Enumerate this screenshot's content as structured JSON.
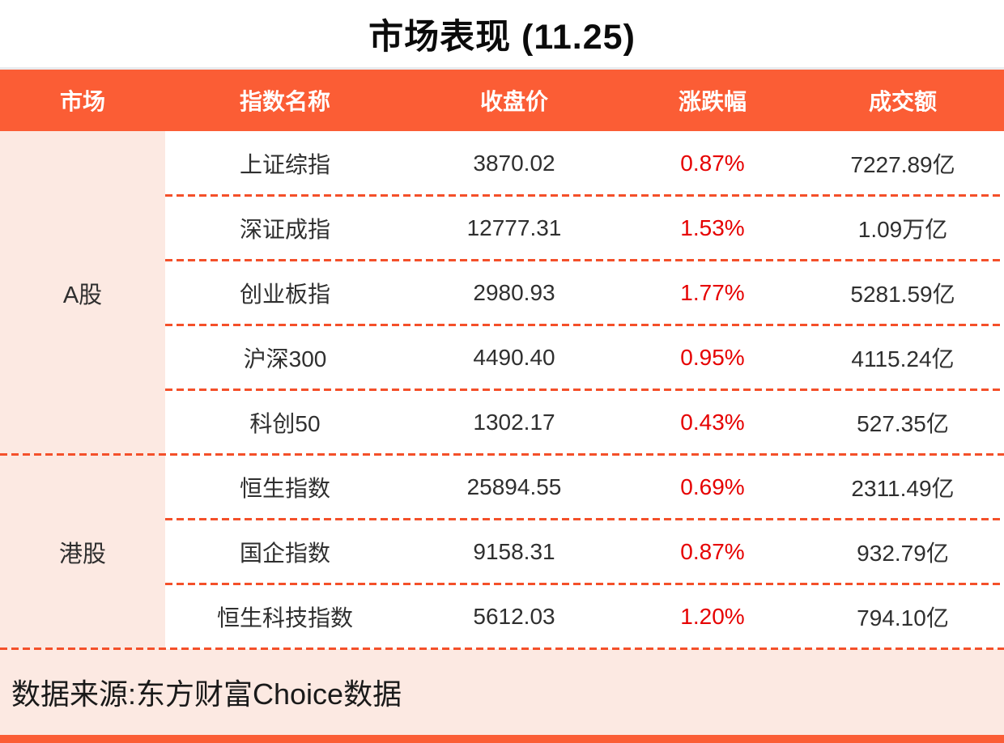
{
  "title": "市场表现 (11.25)",
  "columns": {
    "market": "市场",
    "index_name": "指数名称",
    "close": "收盘价",
    "change": "涨跌幅",
    "turnover": "成交额"
  },
  "groups": [
    {
      "market": "A股",
      "rows": [
        {
          "name": "上证综指",
          "close": "3870.02",
          "change": "0.87%",
          "turnover": "7227.89亿"
        },
        {
          "name": "深证成指",
          "close": "12777.31",
          "change": "1.53%",
          "turnover": "1.09万亿"
        },
        {
          "name": "创业板指",
          "close": "2980.93",
          "change": "1.77%",
          "turnover": "5281.59亿"
        },
        {
          "name": "沪深300",
          "close": "4490.40",
          "change": "0.95%",
          "turnover": "4115.24亿"
        },
        {
          "name": "科创50",
          "close": "1302.17",
          "change": "0.43%",
          "turnover": "527.35亿"
        }
      ]
    },
    {
      "market": "港股",
      "rows": [
        {
          "name": "恒生指数",
          "close": "25894.55",
          "change": "0.69%",
          "turnover": "2311.49亿"
        },
        {
          "name": "国企指数",
          "close": "9158.31",
          "change": "0.87%",
          "turnover": "932.79亿"
        },
        {
          "name": "恒生科技指数",
          "close": "5612.03",
          "change": "1.20%",
          "turnover": "794.10亿"
        }
      ]
    }
  ],
  "footer": {
    "source": "数据来源:东方财富Choice数据"
  },
  "colors": {
    "accent_orange": "#fb5d35",
    "dash_orange": "#f4502a",
    "light_pink": "#fce9e2",
    "change_red": "#e60000",
    "text_dark": "#2f2f2f"
  },
  "chart_data": {
    "type": "table",
    "title": "市场表现 (11.25)",
    "columns": [
      "市场",
      "指数名称",
      "收盘价",
      "涨跌幅",
      "成交额"
    ],
    "rows": [
      [
        "A股",
        "上证综指",
        3870.02,
        "0.87%",
        "7227.89亿"
      ],
      [
        "A股",
        "深证成指",
        12777.31,
        "1.53%",
        "1.09万亿"
      ],
      [
        "A股",
        "创业板指",
        2980.93,
        "1.77%",
        "5281.59亿"
      ],
      [
        "A股",
        "沪深300",
        4490.4,
        "0.95%",
        "4115.24亿"
      ],
      [
        "A股",
        "科创50",
        1302.17,
        "0.43%",
        "527.35亿"
      ],
      [
        "港股",
        "恒生指数",
        25894.55,
        "0.69%",
        "2311.49亿"
      ],
      [
        "港股",
        "国企指数",
        9158.31,
        "0.87%",
        "932.79亿"
      ],
      [
        "港股",
        "恒生科技指数",
        5612.03,
        "1.20%",
        "794.10亿"
      ]
    ],
    "notes": "涨跌幅 values rendered in red; source line: 数据来源:东方财富Choice数据"
  }
}
